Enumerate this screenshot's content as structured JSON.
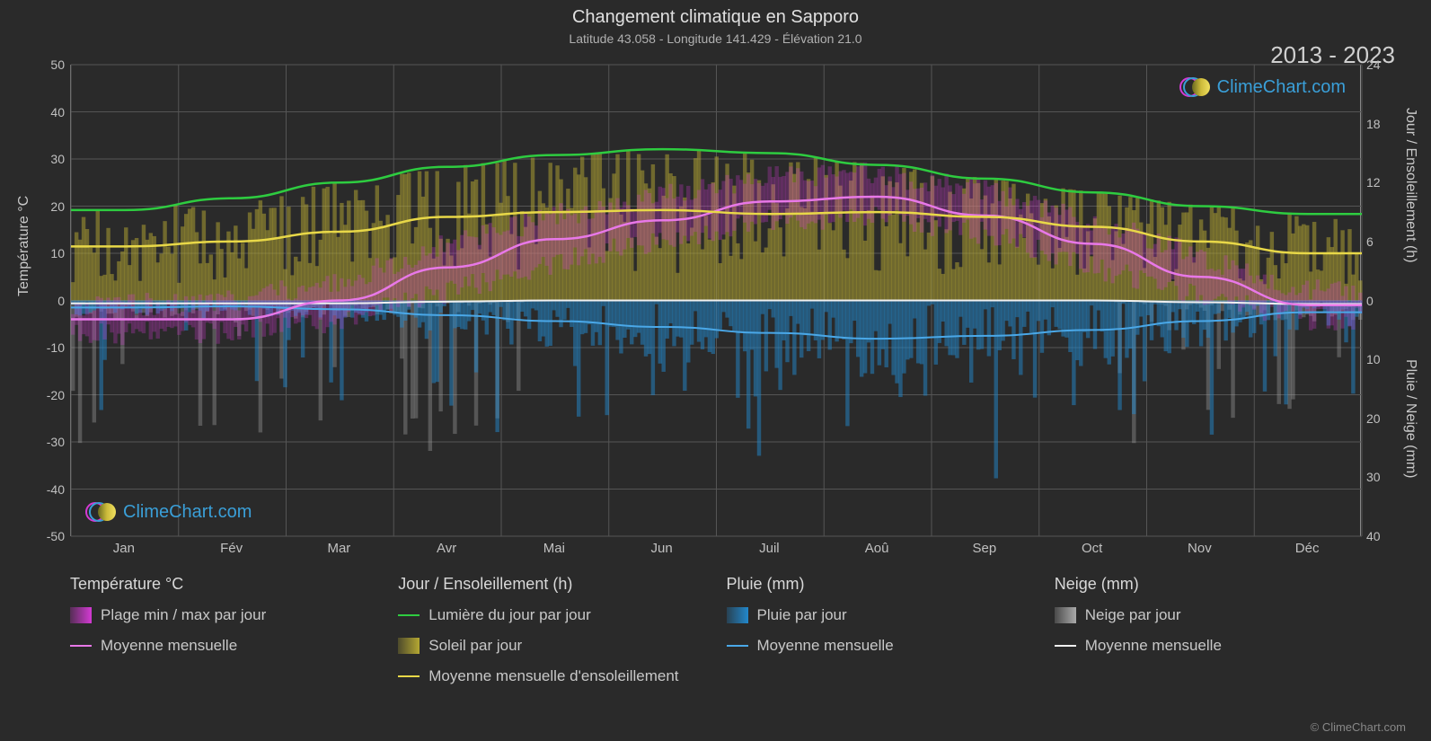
{
  "title": "Changement climatique en Sapporo",
  "subtitle": "Latitude 43.058 - Longitude 141.429 - Élévation 21.0",
  "year_range": "2013 - 2023",
  "brand": "ClimeChart.com",
  "copyright": "© ClimeChart.com",
  "axes": {
    "left_label": "Température °C",
    "right_label_top": "Jour / Ensoleillement (h)",
    "right_label_bottom": "Pluie / Neige (mm)",
    "left_ticks": [
      50,
      40,
      30,
      20,
      10,
      0,
      -10,
      -20,
      -30,
      -40,
      -50
    ],
    "right_ticks_top": [
      24,
      18,
      12,
      6,
      0
    ],
    "right_ticks_bottom": [
      10,
      20,
      30,
      40
    ],
    "months": [
      "Jan",
      "Fév",
      "Mar",
      "Avr",
      "Mai",
      "Jun",
      "Juil",
      "Aoû",
      "Sep",
      "Oct",
      "Nov",
      "Déc"
    ]
  },
  "colors": {
    "bg": "#2a2a2a",
    "grid": "#555555",
    "temp_range": "#d43ad4",
    "temp_avg": "#e878e8",
    "daylight": "#2ecc40",
    "sun_bar": "#b5a832",
    "sun_avg": "#e8d848",
    "rain_bar": "#2288cc",
    "rain_avg": "#4aa8e8",
    "snow_bar": "#aaaaaa",
    "snow_avg": "#f0f0f0",
    "text": "#c8c8c8"
  },
  "legend": {
    "temp_header": "Température °C",
    "temp_range": "Plage min / max par jour",
    "temp_avg": "Moyenne mensuelle",
    "day_header": "Jour / Ensoleillement (h)",
    "daylight": "Lumière du jour par jour",
    "sun_day": "Soleil par jour",
    "sun_avg": "Moyenne mensuelle d'ensoleillement",
    "rain_header": "Pluie (mm)",
    "rain_day": "Pluie par jour",
    "rain_avg": "Moyenne mensuelle",
    "snow_header": "Neige (mm)",
    "snow_day": "Neige par jour",
    "snow_avg": "Moyenne mensuelle"
  },
  "chart": {
    "left_range": [
      -50,
      50
    ],
    "right_top_range": [
      0,
      24
    ],
    "right_bottom_range": [
      40,
      0
    ],
    "temp_min": [
      -7,
      -7,
      -4,
      2,
      8,
      13,
      17,
      18,
      14,
      7,
      1,
      -4
    ],
    "temp_max": [
      -1,
      0,
      4,
      12,
      18,
      22,
      26,
      27,
      23,
      17,
      9,
      2
    ],
    "temp_avg": [
      -4,
      -4,
      0,
      7,
      13,
      17,
      21,
      22,
      18,
      12,
      5,
      -1
    ],
    "daylight_h": [
      9.2,
      10.4,
      12.0,
      13.6,
      14.8,
      15.4,
      15.0,
      13.8,
      12.4,
      11.0,
      9.6,
      8.8
    ],
    "sun_avg_h": [
      5.5,
      6.0,
      7.0,
      8.5,
      9.0,
      9.2,
      8.8,
      9.0,
      8.5,
      7.5,
      6.0,
      4.8
    ],
    "rain_avg_mm": [
      1.2,
      1.0,
      1.5,
      2.5,
      3.5,
      4.5,
      5.5,
      6.5,
      6.0,
      5.0,
      3.5,
      2.0
    ],
    "snow_avg_mm": [
      0.5,
      0.5,
      0.5,
      0.2,
      0,
      0,
      0,
      0,
      0,
      0,
      0.3,
      0.6
    ]
  }
}
